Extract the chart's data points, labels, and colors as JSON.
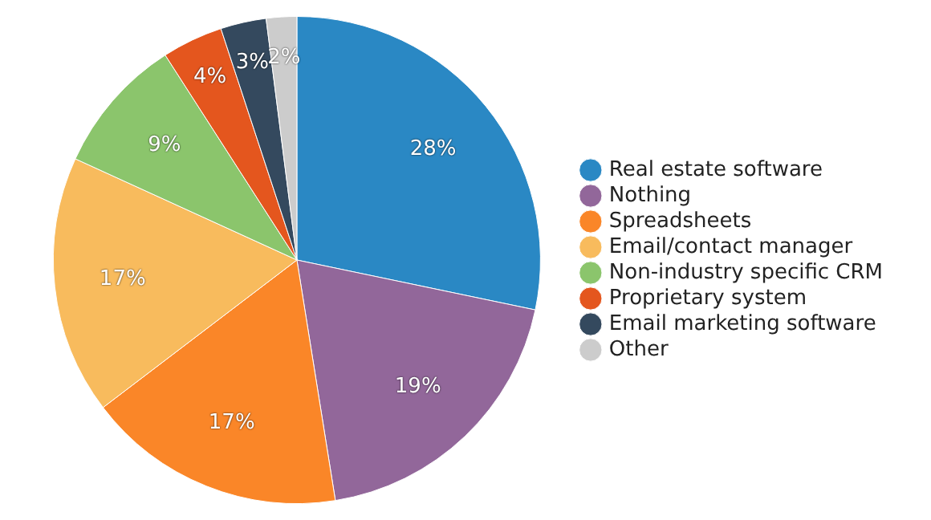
{
  "chart_data": {
    "type": "pie",
    "categories": [
      "Real estate software",
      "Nothing",
      "Spreadsheets",
      "Email/contact manager",
      "Non-industry specific CRM",
      "Proprietary system",
      "Email marketing software",
      "Other"
    ],
    "values": [
      28,
      19,
      17,
      17,
      9,
      4,
      3,
      2
    ],
    "value_labels": [
      "28%",
      "19%",
      "17%",
      "17%",
      "9%",
      "4%",
      "3%",
      "2%"
    ],
    "colors": [
      "#2a88c4",
      "#92679a",
      "#fa8628",
      "#f8bb5d",
      "#8bc56c",
      "#e4561e",
      "#34495e",
      "#cccccc"
    ],
    "legend": "right"
  }
}
